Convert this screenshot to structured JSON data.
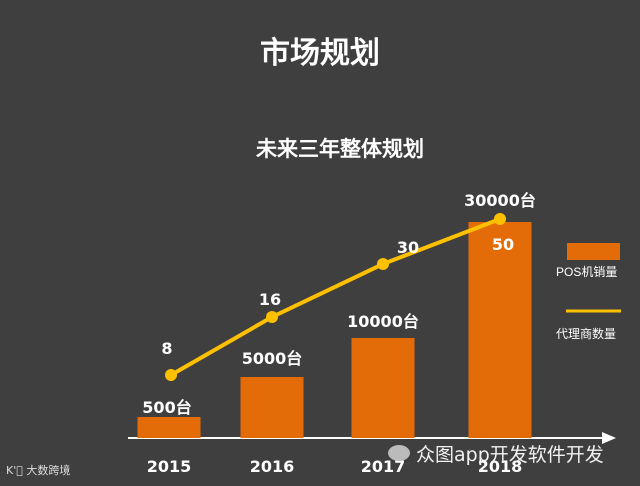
{
  "header": {
    "title": "市场规划"
  },
  "chart_data": {
    "type": "bar",
    "title": "未来三年整体规划",
    "categories": [
      "2015",
      "2016",
      "2017",
      "2018"
    ],
    "series": [
      {
        "name": "POS机销量",
        "type": "bar",
        "values": [
          500,
          5000,
          10000,
          30000
        ],
        "labels": [
          "500台",
          "5000台",
          "10000台",
          "30000台"
        ],
        "color": "#e36c09"
      },
      {
        "name": "代理商数量",
        "type": "line",
        "values": [
          8,
          16,
          30,
          50
        ],
        "labels": [
          "8",
          "16",
          "30",
          "50"
        ],
        "color": "#ffc000"
      }
    ],
    "legend_position": "right",
    "grid": false
  },
  "watermarks": {
    "left": "大数跨境",
    "left_mark": "K'᪽",
    "right": "众图app开发软件开发"
  }
}
